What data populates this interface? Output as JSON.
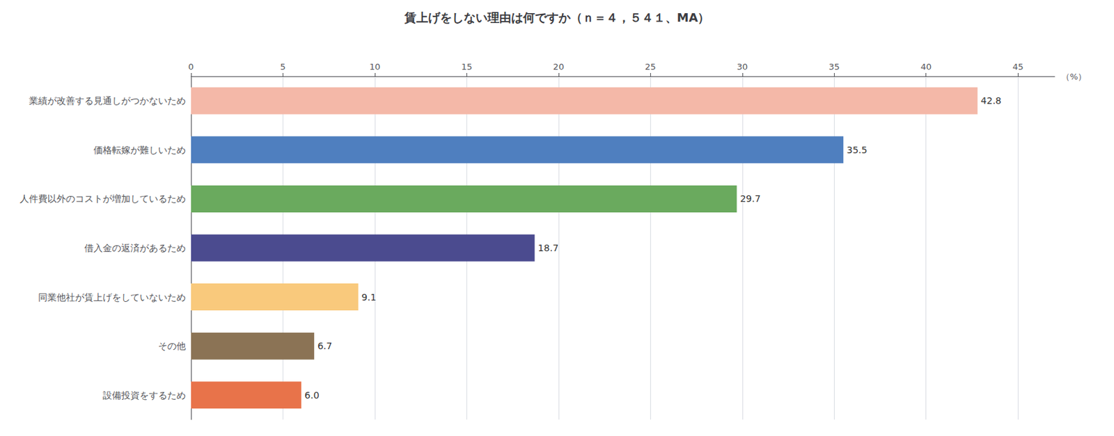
{
  "chart_data": {
    "type": "bar",
    "orientation": "horizontal",
    "title": "賃上げをしない理由は何ですか（ｎ＝４，５４１、MA）",
    "categories": [
      "業績が改善する見通しがつかないため",
      "価格転嫁が難しいため",
      "人件費以外のコストが増加しているため",
      "借入金の返済があるため",
      "同業他社が賃上げをしていないため",
      "その他",
      "設備投資をするため"
    ],
    "values": [
      42.8,
      35.5,
      29.7,
      18.7,
      9.1,
      6.7,
      6.0
    ],
    "value_labels": [
      "42.8",
      "35.5",
      "29.7",
      "18.7",
      "9.1",
      "6.7",
      "6.0"
    ],
    "colors": [
      "#f4b8a8",
      "#4f7fbf",
      "#6aaa5e",
      "#4b4b8f",
      "#f9c97c",
      "#8b7355",
      "#e8734a"
    ],
    "xlabel": "（%）",
    "xlim": [
      0,
      47
    ],
    "xticks": [
      0,
      5,
      10,
      15,
      20,
      25,
      30,
      35,
      40,
      45
    ],
    "grid": true,
    "data_labels": true
  }
}
